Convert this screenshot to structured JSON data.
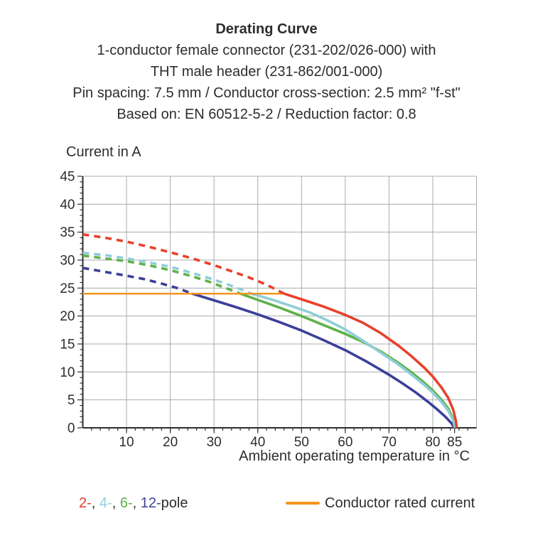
{
  "header": {
    "title": "Derating Curve",
    "lines": [
      "1-conductor female connector (231-202/026-000) with",
      "THT male header (231-862/001-000)",
      "Pin spacing: 7.5 mm / Conductor cross-section: 2.5 mm² \"f-st\"",
      "Based on: EN 60512-5-2 / Reduction factor: 0.8"
    ]
  },
  "chart_data": {
    "type": "line",
    "title": "Derating Curve",
    "ylabel": "Current in A",
    "xlabel": "Ambient operating temperature in °C",
    "xlim": [
      0,
      90
    ],
    "ylim": [
      0,
      45
    ],
    "x_major_ticks": [
      10,
      20,
      30,
      40,
      50,
      60,
      70,
      80,
      85
    ],
    "x_minor_tick_step": 2,
    "y_major_ticks": [
      0,
      5,
      10,
      15,
      20,
      25,
      30,
      35,
      40,
      45
    ],
    "y_minor_tick_step": 1,
    "x_gridlines": [
      10,
      20,
      30,
      40,
      50,
      60,
      70,
      80,
      90
    ],
    "y_gridlines": [
      5,
      10,
      15,
      20,
      25,
      30,
      35,
      40,
      45
    ],
    "grid_on": true,
    "grid_color": "#a9abae",
    "axis_color": "#2d2d2d",
    "rated_current_a": 24,
    "series": [
      {
        "name": "12-pole",
        "color": "#3c3f99",
        "width": 3.6,
        "segments": [
          {
            "style": "dashed",
            "points": [
              [
                0,
                28.6
              ],
              [
                5,
                27.9
              ],
              [
                10,
                27.2
              ],
              [
                14,
                26.6
              ],
              [
                18,
                25.8
              ],
              [
                22,
                24.9
              ],
              [
                25,
                24
              ]
            ]
          },
          {
            "style": "solid",
            "points": [
              [
                25,
                24
              ],
              [
                30,
                22.8
              ],
              [
                35,
                21.6
              ],
              [
                40,
                20.3
              ],
              [
                45,
                18.9
              ],
              [
                50,
                17.4
              ],
              [
                55,
                15.7
              ],
              [
                60,
                13.9
              ],
              [
                65,
                11.8
              ],
              [
                70,
                9.5
              ],
              [
                73,
                8.0
              ],
              [
                76,
                6.4
              ],
              [
                79,
                4.6
              ],
              [
                81,
                3.3
              ],
              [
                83,
                1.9
              ],
              [
                84.3,
                0.8
              ],
              [
                84.9,
                0
              ]
            ]
          }
        ]
      },
      {
        "name": "6-pole",
        "color": "#5fb248",
        "width": 3.6,
        "segments": [
          {
            "style": "dashed",
            "points": [
              [
                0,
                30.8
              ],
              [
                5,
                30.3
              ],
              [
                10,
                29.8
              ],
              [
                15,
                29.1
              ],
              [
                20,
                28.2
              ],
              [
                25,
                27.1
              ],
              [
                29,
                26.1
              ],
              [
                33,
                24.9
              ],
              [
                36,
                24
              ]
            ]
          },
          {
            "style": "solid",
            "points": [
              [
                36,
                24
              ],
              [
                40,
                22.9
              ],
              [
                45,
                21.5
              ],
              [
                50,
                20.0
              ],
              [
                55,
                18.4
              ],
              [
                60,
                16.8
              ],
              [
                64,
                15.4
              ],
              [
                68,
                13.7
              ],
              [
                72,
                11.7
              ],
              [
                75,
                10.0
              ],
              [
                78,
                8.1
              ],
              [
                80,
                6.7
              ],
              [
                82,
                5.0
              ],
              [
                83.5,
                3.5
              ],
              [
                84.6,
                1.7
              ],
              [
                85.05,
                0
              ]
            ]
          }
        ]
      },
      {
        "name": "4-pole",
        "color": "#8fced8",
        "width": 3.6,
        "segments": [
          {
            "style": "dashed",
            "points": [
              [
                0,
                31.3
              ],
              [
                5,
                30.9
              ],
              [
                10,
                30.3
              ],
              [
                15,
                29.6
              ],
              [
                20,
                28.8
              ],
              [
                25,
                27.7
              ],
              [
                30,
                26.5
              ],
              [
                34,
                25.4
              ],
              [
                38.5,
                24
              ]
            ]
          },
          {
            "style": "solid",
            "points": [
              [
                38.5,
                24
              ],
              [
                43,
                23.0
              ],
              [
                48,
                21.7
              ],
              [
                52,
                20.6
              ],
              [
                56,
                19.2
              ],
              [
                60,
                17.6
              ],
              [
                64,
                15.6
              ],
              [
                68,
                13.5
              ],
              [
                72,
                11.4
              ],
              [
                75,
                9.6
              ],
              [
                78,
                7.7
              ],
              [
                80,
                6.3
              ],
              [
                82,
                4.6
              ],
              [
                83.5,
                3.1
              ],
              [
                84.7,
                1.3
              ],
              [
                85.15,
                0
              ]
            ]
          }
        ]
      },
      {
        "name": "conductor-rated-current",
        "color": "#f6941e",
        "width": 2.5,
        "segments": [
          {
            "style": "solid",
            "points": [
              [
                0,
                24
              ],
              [
                46,
                24
              ]
            ]
          }
        ]
      },
      {
        "name": "2-pole",
        "color": "#e8412c",
        "width": 3.6,
        "segments": [
          {
            "style": "dashed",
            "points": [
              [
                0,
                34.6
              ],
              [
                5,
                34.0
              ],
              [
                10,
                33.3
              ],
              [
                15,
                32.4
              ],
              [
                20,
                31.4
              ],
              [
                25,
                30.3
              ],
              [
                30,
                29.1
              ],
              [
                34,
                28.0
              ],
              [
                38,
                26.9
              ],
              [
                42,
                25.6
              ],
              [
                46,
                24
              ]
            ]
          },
          {
            "style": "solid",
            "points": [
              [
                46,
                24
              ],
              [
                50,
                23.0
              ],
              [
                55,
                21.7
              ],
              [
                60,
                20.2
              ],
              [
                64,
                18.8
              ],
              [
                68,
                17.0
              ],
              [
                72,
                14.8
              ],
              [
                75,
                12.9
              ],
              [
                78,
                10.8
              ],
              [
                80,
                9.2
              ],
              [
                82,
                7.2
              ],
              [
                83.5,
                5.4
              ],
              [
                84.7,
                3.2
              ],
              [
                85.3,
                1.2
              ],
              [
                85.45,
                0
              ]
            ]
          }
        ]
      }
    ]
  },
  "legend": {
    "pole_parts": [
      {
        "text": "2-",
        "color": "#e8412c"
      },
      {
        "text": ", ",
        "color": "#2d2d2d"
      },
      {
        "text": "4-",
        "color": "#8fced8"
      },
      {
        "text": ", ",
        "color": "#2d2d2d"
      },
      {
        "text": "6-",
        "color": "#5fb248"
      },
      {
        "text": ", ",
        "color": "#2d2d2d"
      },
      {
        "text": "12-",
        "color": "#3c3f99"
      },
      {
        "text": "pole",
        "color": "#2d2d2d"
      }
    ],
    "rated_label": "Conductor rated current",
    "rated_color": "#f6941e"
  }
}
